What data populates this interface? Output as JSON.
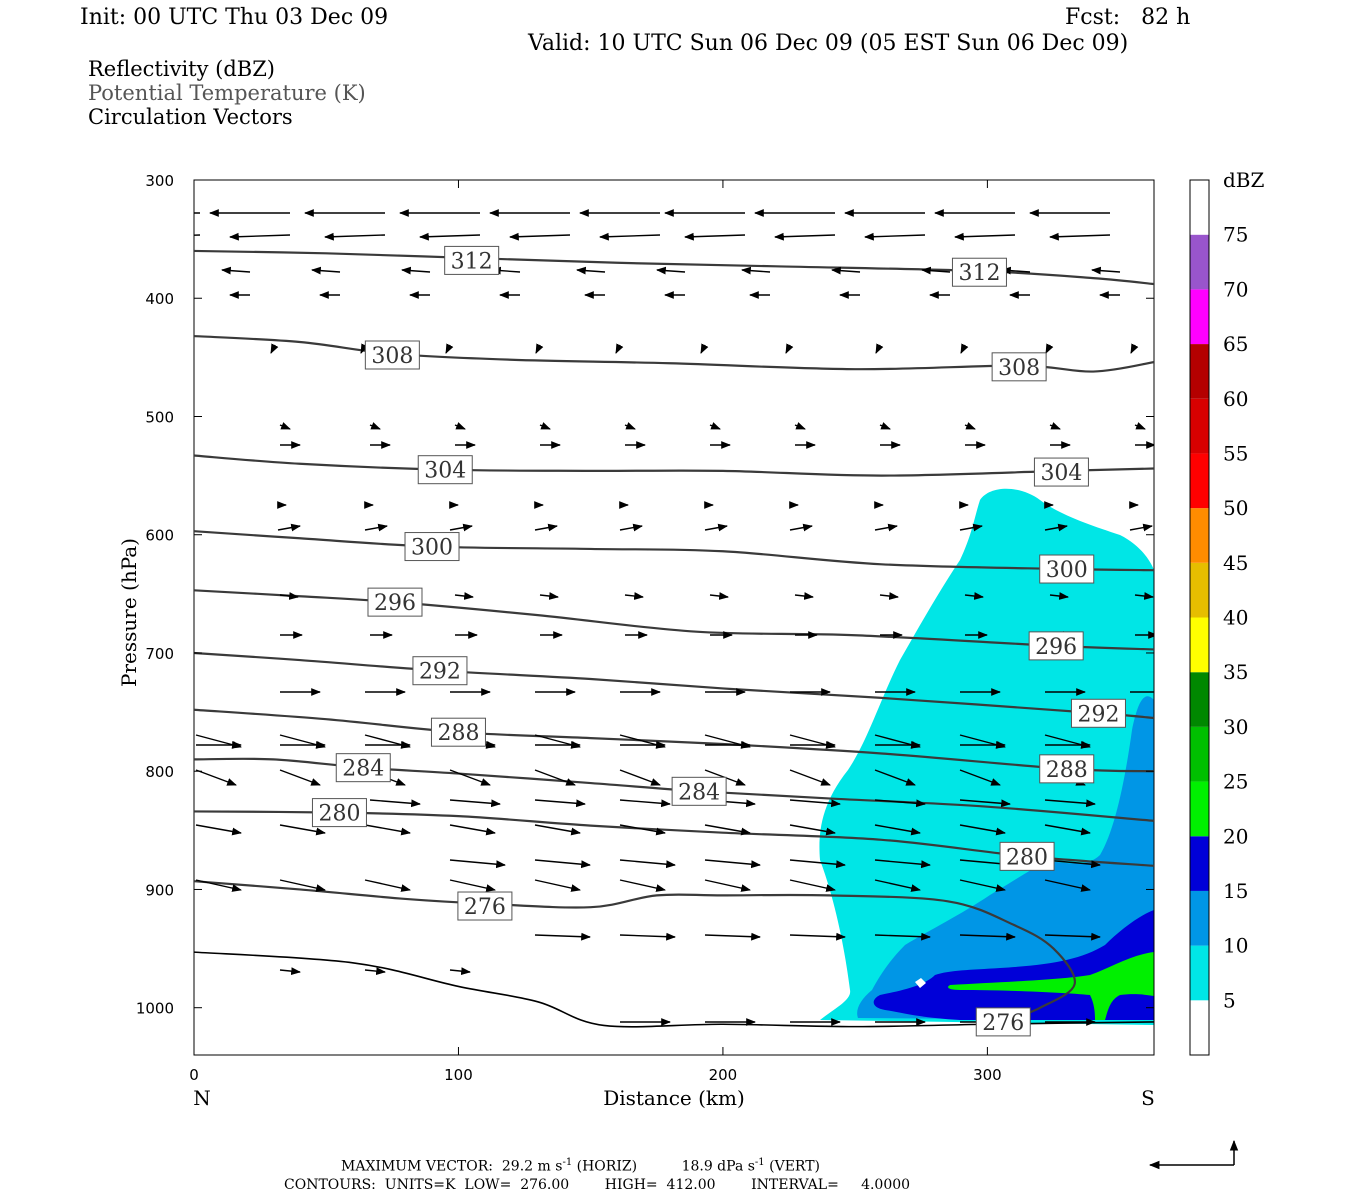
{
  "header": {
    "init": "Init: 00 UTC Thu 03 Dec 09",
    "fcst": "Fcst:   82 h",
    "valid": "Valid: 10 UTC Sun 06 Dec 09 (05 EST Sun 06 Dec 09)"
  },
  "fields": [
    {
      "label": "Reflectivity (dBZ)",
      "color": "#000000"
    },
    {
      "label": "Potential Temperature (K)",
      "color": "#555555"
    },
    {
      "label": "Circulation Vectors",
      "color": "#000000"
    }
  ],
  "chart_data": {
    "type": "contour",
    "xlabel": "Distance (km)",
    "ylabel": "Pressure (hPa)",
    "xlim": [
      0,
      363
    ],
    "ylim": [
      1040,
      300
    ],
    "xticks": [
      0,
      100,
      200,
      300
    ],
    "yticks": [
      300,
      400,
      500,
      600,
      700,
      800,
      900,
      1000
    ],
    "x_end_labels": {
      "left": "N",
      "right": "S"
    },
    "colorbar": {
      "title": "dBZ",
      "levels": [
        5,
        10,
        15,
        20,
        25,
        30,
        35,
        40,
        45,
        50,
        55,
        60,
        65,
        70,
        75
      ],
      "colors": [
        "#ffffff",
        "#00e6e6",
        "#0096e6",
        "#0000d8",
        "#00f000",
        "#00c000",
        "#008800",
        "#ffff00",
        "#e6be00",
        "#ff8c00",
        "#ff0000",
        "#d80000",
        "#b40000",
        "#ff00ff",
        "#9955cc",
        "#ffffff"
      ]
    },
    "theta_contours": [
      {
        "level": 312,
        "labels": [
          [
            105,
            368
          ],
          [
            297,
            378
          ]
        ],
        "points": [
          [
            0,
            360
          ],
          [
            50,
            362
          ],
          [
            105,
            366
          ],
          [
            160,
            370
          ],
          [
            220,
            373
          ],
          [
            297,
            377
          ],
          [
            340,
            383
          ],
          [
            363,
            388
          ]
        ]
      },
      {
        "level": 308,
        "labels": [
          [
            75,
            448
          ],
          [
            312,
            458
          ]
        ],
        "points": [
          [
            0,
            432
          ],
          [
            40,
            437
          ],
          [
            75,
            447
          ],
          [
            120,
            452
          ],
          [
            180,
            455
          ],
          [
            250,
            460
          ],
          [
            312,
            457
          ],
          [
            340,
            462
          ],
          [
            363,
            454
          ]
        ]
      },
      {
        "level": 304,
        "labels": [
          [
            95,
            545
          ],
          [
            328,
            547
          ]
        ],
        "points": [
          [
            0,
            533
          ],
          [
            40,
            540
          ],
          [
            95,
            545
          ],
          [
            150,
            546
          ],
          [
            200,
            546
          ],
          [
            260,
            550
          ],
          [
            328,
            546
          ],
          [
            363,
            544
          ]
        ]
      },
      {
        "level": 300,
        "labels": [
          [
            90,
            610
          ],
          [
            330,
            629
          ]
        ],
        "points": [
          [
            0,
            597
          ],
          [
            40,
            603
          ],
          [
            90,
            610
          ],
          [
            150,
            612
          ],
          [
            200,
            614
          ],
          [
            260,
            625
          ],
          [
            330,
            629
          ],
          [
            363,
            630
          ]
        ]
      },
      {
        "level": 296,
        "labels": [
          [
            76,
            657
          ],
          [
            326,
            694
          ]
        ],
        "points": [
          [
            0,
            647
          ],
          [
            40,
            652
          ],
          [
            76,
            657
          ],
          [
            130,
            668
          ],
          [
            190,
            682
          ],
          [
            250,
            685
          ],
          [
            326,
            694
          ],
          [
            363,
            697
          ]
        ]
      },
      {
        "level": 292,
        "labels": [
          [
            93,
            715
          ],
          [
            342,
            751
          ]
        ],
        "points": [
          [
            0,
            700
          ],
          [
            40,
            706
          ],
          [
            93,
            715
          ],
          [
            150,
            722
          ],
          [
            200,
            730
          ],
          [
            260,
            738
          ],
          [
            342,
            751
          ],
          [
            363,
            755
          ]
        ]
      },
      {
        "level": 288,
        "labels": [
          [
            100,
            767
          ],
          [
            330,
            798
          ]
        ],
        "points": [
          [
            0,
            748
          ],
          [
            50,
            756
          ],
          [
            100,
            767
          ],
          [
            150,
            772
          ],
          [
            200,
            777
          ],
          [
            260,
            785
          ],
          [
            330,
            798
          ],
          [
            363,
            800
          ]
        ]
      },
      {
        "level": 284,
        "labels": [
          [
            64,
            797
          ],
          [
            191,
            817
          ]
        ],
        "points": [
          [
            0,
            790
          ],
          [
            30,
            790
          ],
          [
            64,
            797
          ],
          [
            100,
            802
          ],
          [
            150,
            810
          ],
          [
            191,
            817
          ],
          [
            240,
            823
          ],
          [
            300,
            830
          ],
          [
            363,
            842
          ]
        ]
      },
      {
        "level": 280,
        "labels": [
          [
            55,
            835
          ],
          [
            315,
            872
          ]
        ],
        "points": [
          [
            0,
            834
          ],
          [
            55,
            835
          ],
          [
            100,
            838
          ],
          [
            150,
            846
          ],
          [
            200,
            852
          ],
          [
            260,
            858
          ],
          [
            315,
            872
          ],
          [
            363,
            880
          ]
        ]
      },
      {
        "level": 276,
        "labels": [
          [
            110,
            914
          ],
          [
            306,
            1012
          ]
        ],
        "points": [
          [
            0,
            893
          ],
          [
            40,
            900
          ],
          [
            80,
            908
          ],
          [
            110,
            912
          ],
          [
            150,
            915
          ],
          [
            175,
            905
          ],
          [
            200,
            905
          ],
          [
            240,
            905
          ],
          [
            285,
            910
          ],
          [
            310,
            930
          ],
          [
            325,
            950
          ],
          [
            333,
            980
          ],
          [
            320,
            1000
          ],
          [
            306,
            1012
          ]
        ]
      }
    ],
    "surface_contour": [
      [
        0,
        953
      ],
      [
        60,
        962
      ],
      [
        100,
        982
      ],
      [
        130,
        995
      ],
      [
        155,
        1015
      ],
      [
        200,
        1014
      ],
      [
        250,
        1016
      ],
      [
        300,
        1014
      ],
      [
        363,
        1012
      ]
    ],
    "max_vector": {
      "horiz": "29.2 m s-1 (HORIZ)",
      "vert": "18.9 dPa s-1 (VERT)"
    },
    "contours_info": {
      "units": "K",
      "low": "276.00",
      "high": "412.00",
      "interval": "4.0000"
    }
  },
  "footer": {
    "max_vector_prefix": "MAXIMUM VECTOR:",
    "horiz_value": "29.2 m s",
    "horiz_sup": "-1",
    "horiz_tail": " (HORIZ)",
    "vert_value": "18.9 dPa s",
    "vert_sup": "-1",
    "vert_tail": " (VERT)",
    "contours_line": "CONTOURS:  UNITS=K  LOW=  276.00        HIGH=  412.00        INTERVAL=     4.0000"
  }
}
